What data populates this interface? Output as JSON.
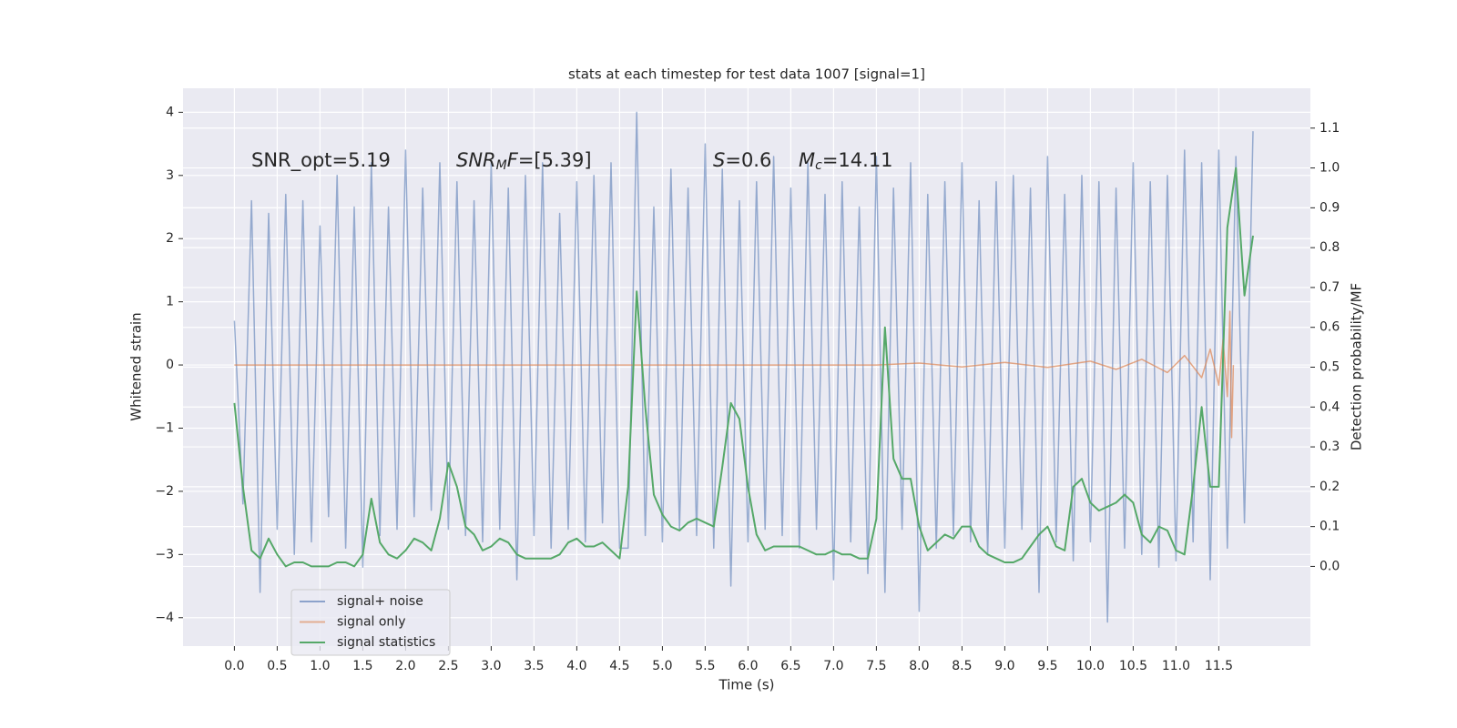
{
  "chart_data": {
    "type": "line",
    "title": "stats at each timestep for test data 1007 [signal=1]",
    "xlabel": "Time (s)",
    "ylabel": "Whitened strain",
    "y2label": "Detection probability/MF",
    "grid": true,
    "legend": "lower left",
    "annotations": [
      {
        "parts": [
          {
            "text": "SNR_opt=5.19",
            "style": "normal"
          }
        ]
      },
      {
        "parts": [
          {
            "text": "SNR",
            "style": "italic"
          },
          {
            "text": "M",
            "style": "sub"
          },
          {
            "text": "F",
            "style": "italic"
          },
          {
            "text": "=[5.39]",
            "style": "normal"
          }
        ]
      },
      {
        "parts": [
          {
            "text": "S",
            "style": "italic"
          },
          {
            "text": "=0.6",
            "style": "normal"
          }
        ]
      },
      {
        "parts": [
          {
            "text": "M",
            "style": "italic"
          },
          {
            "text": "c",
            "style": "sub"
          },
          {
            "text": "=14.11",
            "style": "normal"
          }
        ]
      }
    ],
    "xlim": [
      -0.6,
      12.57
    ],
    "ylim": [
      -4.45,
      4.38
    ],
    "y2lim": [
      -0.2,
      1.2
    ],
    "xticks": [
      {
        "value": 0,
        "label": "0.0"
      },
      0.5,
      {
        "value": 1,
        "label": "1.0"
      },
      1.5,
      {
        "value": 2,
        "label": "2.0"
      },
      2.5,
      {
        "value": 3,
        "label": "3.0"
      },
      3.5,
      {
        "value": 4,
        "label": "4.0"
      },
      4.5,
      {
        "value": 5,
        "label": "5.0"
      },
      5.5,
      {
        "value": 6,
        "label": "6.0"
      },
      6.5,
      {
        "value": 7,
        "label": "7.0"
      },
      7.5,
      {
        "value": 8,
        "label": "8.0"
      },
      8.5,
      {
        "value": 9,
        "label": "9.0"
      },
      9.5,
      {
        "value": 10,
        "label": "10.0"
      },
      10.5,
      {
        "value": 11,
        "label": "11.0"
      },
      11.5
    ],
    "yticks": [
      {
        "value": -4,
        "label": "−4"
      },
      {
        "value": -3,
        "label": "−3"
      },
      {
        "value": -2,
        "label": "−2"
      },
      {
        "value": -1,
        "label": "−1"
      },
      0,
      1,
      2,
      3,
      4
    ],
    "y2ticks": [
      {
        "value": 0,
        "label": "0.0"
      },
      0.1,
      0.2,
      0.3,
      0.4,
      0.5,
      0.6,
      0.7,
      0.8,
      0.9,
      {
        "value": 1,
        "label": "1.0"
      },
      1.1
    ],
    "x": [
      0,
      0.1,
      0.2,
      0.3,
      0.4,
      0.5,
      0.6,
      0.7,
      0.8,
      0.9,
      1,
      1.1,
      1.2,
      1.3,
      1.4,
      1.5,
      1.6,
      1.7,
      1.8,
      1.9,
      2,
      2.1,
      2.2,
      2.3,
      2.4,
      2.5,
      2.6,
      2.7,
      2.8,
      2.9,
      3,
      3.1,
      3.2,
      3.3,
      3.4,
      3.5,
      3.6,
      3.7,
      3.8,
      3.9,
      4,
      4.1,
      4.2,
      4.3,
      4.4,
      4.5,
      4.6,
      4.7,
      4.8,
      4.9,
      5,
      5.1,
      5.2,
      5.3,
      5.4,
      5.5,
      5.6,
      5.7,
      5.8,
      5.9,
      6,
      6.1,
      6.2,
      6.3,
      6.4,
      6.5,
      6.6,
      6.7,
      6.8,
      6.9,
      7,
      7.1,
      7.2,
      7.3,
      7.4,
      7.5,
      7.6,
      7.7,
      7.8,
      7.9,
      8,
      8.1,
      8.2,
      8.3,
      8.4,
      8.5,
      8.6,
      8.7,
      8.8,
      8.9,
      9,
      9.1,
      9.2,
      9.3,
      9.4,
      9.5,
      9.6,
      9.7,
      9.8,
      9.9,
      10,
      10.1,
      10.2,
      10.3,
      10.4,
      10.5,
      10.6,
      10.7,
      10.8,
      10.9,
      11,
      11.1,
      11.2,
      11.3,
      11.4,
      11.5,
      11.6,
      11.7,
      11.8,
      11.9
    ],
    "series": [
      {
        "name": "signal+ noise",
        "color": "#4c72b0",
        "values": [
          0.7,
          -2.2,
          2.6,
          -3.6,
          2.4,
          -2.6,
          2.7,
          -3.0,
          2.6,
          -2.8,
          2.2,
          -2.4,
          3.0,
          -2.9,
          2.5,
          -3.2,
          3.2,
          -2.7,
          2.5,
          -2.6,
          3.4,
          -2.4,
          2.8,
          -2.3,
          3.2,
          -2.6,
          2.9,
          -2.7,
          2.6,
          -2.8,
          3.2,
          -2.6,
          2.8,
          -3.4,
          3.0,
          -2.7,
          3.2,
          -2.9,
          2.4,
          -2.6,
          2.9,
          -2.8,
          3.0,
          -2.5,
          3.2,
          -2.9,
          -2.9,
          4.0,
          -2.7,
          2.5,
          -2.8,
          3.1,
          -2.6,
          2.8,
          -2.7,
          3.5,
          -2.9,
          3.1,
          -3.5,
          2.6,
          -2.8,
          2.9,
          -2.6,
          3.3,
          -2.7,
          2.8,
          -2.9,
          3.2,
          -2.6,
          2.7,
          -3.4,
          2.9,
          -2.8,
          2.5,
          -3.3,
          3.3,
          -3.6,
          2.8,
          -2.6,
          3.2,
          -3.9,
          2.7,
          -2.9,
          2.9,
          -2.7,
          3.2,
          -2.8,
          2.6,
          -3.0,
          2.9,
          -2.9,
          3.0,
          -2.6,
          2.8,
          -3.6,
          3.3,
          -2.8,
          2.7,
          -3.1,
          3.0,
          -2.8,
          2.9,
          -4.07,
          2.8,
          -2.9,
          3.2,
          -3.0,
          2.9,
          -3.2,
          3.0,
          -3.1,
          3.4,
          -2.8,
          3.2,
          -3.4,
          3.4,
          -2.9,
          3.3,
          -2.5,
          3.7
        ]
      },
      {
        "name": "signal only",
        "color": "#dd8452",
        "x": [
          0,
          7.5,
          8,
          8.5,
          9,
          9.5,
          10,
          10.3,
          10.6,
          10.9,
          11.1,
          11.3,
          11.4,
          11.5,
          11.55,
          11.6,
          11.63,
          11.65,
          11.67
        ],
        "values": [
          0,
          0,
          0.03,
          -0.03,
          0.04,
          -0.04,
          0.06,
          -0.07,
          0.09,
          -0.12,
          0.15,
          -0.2,
          0.25,
          -0.32,
          0.4,
          -0.5,
          0.85,
          -1.15,
          0
        ]
      },
      {
        "name": "signal statistics",
        "color": "#55a868",
        "axis": "y2",
        "values": [
          0.41,
          0.2,
          0.04,
          0.02,
          0.07,
          0.03,
          0,
          0.01,
          0.01,
          0,
          0,
          0,
          0.01,
          0.01,
          0,
          0.03,
          0.17,
          0.06,
          0.03,
          0.02,
          0.04,
          0.07,
          0.06,
          0.04,
          0.12,
          0.26,
          0.2,
          0.1,
          0.08,
          0.04,
          0.05,
          0.07,
          0.06,
          0.03,
          0.02,
          0.02,
          0.02,
          0.02,
          0.03,
          0.06,
          0.07,
          0.05,
          0.05,
          0.06,
          0.04,
          0.02,
          0.2,
          0.69,
          0.4,
          0.18,
          0.13,
          0.1,
          0.09,
          0.11,
          0.12,
          0.11,
          0.1,
          0.25,
          0.41,
          0.37,
          0.2,
          0.08,
          0.04,
          0.05,
          0.05,
          0.05,
          0.05,
          0.04,
          0.03,
          0.03,
          0.04,
          0.03,
          0.03,
          0.02,
          0.02,
          0.12,
          0.6,
          0.27,
          0.22,
          0.22,
          0.1,
          0.04,
          0.06,
          0.08,
          0.07,
          0.1,
          0.1,
          0.05,
          0.03,
          0.02,
          0.01,
          0.01,
          0.02,
          0.05,
          0.08,
          0.1,
          0.05,
          0.04,
          0.2,
          0.22,
          0.16,
          0.14,
          0.15,
          0.16,
          0.18,
          0.16,
          0.08,
          0.06,
          0.1,
          0.09,
          0.04,
          0.03,
          0.2,
          0.4,
          0.2,
          0.2,
          0.85,
          1.0,
          0.68,
          0.83
        ]
      }
    ]
  }
}
